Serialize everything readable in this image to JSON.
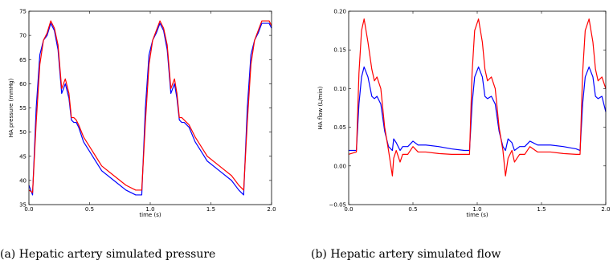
{
  "captions": {
    "a": "(a) Hepatic artery simulated pressure",
    "b": "(b) Hepatic artery simulated flow"
  },
  "colors": {
    "series1": "#0000ff",
    "series2": "#ff0000"
  },
  "chart_data": [
    {
      "type": "line",
      "xlabel": "time (s)",
      "ylabel": "HA pressure (mmHg)",
      "xlim": [
        0.0,
        2.0
      ],
      "ylim": [
        35,
        75
      ],
      "xticks": [
        0.0,
        0.5,
        1.0,
        1.5,
        2.0
      ],
      "xtick_labels": [
        "0.0",
        "0.5",
        "1.0",
        "1.5",
        "2.0"
      ],
      "yticks": [
        35,
        40,
        45,
        50,
        55,
        60,
        65,
        70,
        75
      ],
      "ytick_labels": [
        "35",
        "40",
        "45",
        "50",
        "55",
        "60",
        "65",
        "70",
        "75"
      ],
      "grid": false,
      "series": [
        {
          "color": "#0000ff",
          "x": [
            0.0,
            0.03,
            0.06,
            0.09,
            0.12,
            0.15,
            0.18,
            0.21,
            0.24,
            0.27,
            0.3,
            0.33,
            0.35,
            0.37,
            0.39,
            0.41,
            0.45,
            0.5,
            0.55,
            0.6,
            0.7,
            0.8,
            0.88,
            0.93,
            0.96,
            0.99,
            1.02,
            1.05,
            1.08,
            1.11,
            1.14,
            1.17,
            1.2,
            1.22,
            1.24,
            1.26,
            1.28,
            1.32,
            1.37,
            1.42,
            1.47,
            1.57,
            1.67,
            1.73,
            1.77,
            1.8,
            1.83,
            1.86,
            1.89,
            1.92,
            1.95,
            1.98,
            2.0
          ],
          "y": [
            39.0,
            37.0,
            55.0,
            66.0,
            69.0,
            70.0,
            72.5,
            71.0,
            67.0,
            58.0,
            60.0,
            57.0,
            52.5,
            52.0,
            52.0,
            51.0,
            48.0,
            46.0,
            44.0,
            42.0,
            40.0,
            38.0,
            37.0,
            37.0,
            55.0,
            66.0,
            69.0,
            70.5,
            72.5,
            71.0,
            67.0,
            58.0,
            60.0,
            57.0,
            52.5,
            52.0,
            52.0,
            51.0,
            48.0,
            46.0,
            44.0,
            42.0,
            40.0,
            38.0,
            37.0,
            55.0,
            66.0,
            69.0,
            70.5,
            72.5,
            72.5,
            72.5,
            71.5
          ]
        },
        {
          "color": "#ff0000",
          "x": [
            0.0,
            0.03,
            0.06,
            0.09,
            0.12,
            0.15,
            0.18,
            0.21,
            0.24,
            0.27,
            0.3,
            0.33,
            0.35,
            0.37,
            0.39,
            0.41,
            0.45,
            0.5,
            0.55,
            0.6,
            0.7,
            0.8,
            0.88,
            0.93,
            0.96,
            0.99,
            1.02,
            1.05,
            1.08,
            1.11,
            1.14,
            1.17,
            1.2,
            1.22,
            1.24,
            1.26,
            1.28,
            1.32,
            1.37,
            1.42,
            1.47,
            1.57,
            1.67,
            1.73,
            1.77,
            1.8,
            1.83,
            1.86,
            1.89,
            1.92,
            1.95,
            1.98,
            2.0
          ],
          "y": [
            38.0,
            37.5,
            52.0,
            64.0,
            69.0,
            70.5,
            73.0,
            71.5,
            68.0,
            59.0,
            61.0,
            58.0,
            53.0,
            53.0,
            52.5,
            51.5,
            49.0,
            47.0,
            45.0,
            43.0,
            41.0,
            39.0,
            38.0,
            38.0,
            52.0,
            64.0,
            69.0,
            71.0,
            73.0,
            71.5,
            68.0,
            59.0,
            61.0,
            58.0,
            53.0,
            53.0,
            52.5,
            51.5,
            49.0,
            47.0,
            45.0,
            43.0,
            41.0,
            39.0,
            38.0,
            52.0,
            64.0,
            69.0,
            71.0,
            73.0,
            73.0,
            73.0,
            72.0
          ]
        }
      ]
    },
    {
      "type": "line",
      "xlabel": "time (s)",
      "ylabel": "HA flow (L/min)",
      "xlim": [
        0.0,
        2.0
      ],
      "ylim": [
        -0.05,
        0.2
      ],
      "xticks": [
        0.0,
        0.5,
        1.0,
        1.5,
        2.0
      ],
      "xtick_labels": [
        "0.0",
        "0.5",
        "1.0",
        "1.5",
        "2.0"
      ],
      "yticks": [
        -0.05,
        0.0,
        0.05,
        0.1,
        0.15,
        0.2
      ],
      "ytick_labels": [
        "−0.05",
        "0.00",
        "0.05",
        "0.10",
        "0.15",
        "0.20"
      ],
      "grid": false,
      "series": [
        {
          "color": "#0000ff",
          "x": [
            0.0,
            0.06,
            0.08,
            0.1,
            0.12,
            0.15,
            0.18,
            0.2,
            0.22,
            0.25,
            0.28,
            0.31,
            0.34,
            0.35,
            0.37,
            0.4,
            0.42,
            0.46,
            0.5,
            0.54,
            0.6,
            0.7,
            0.8,
            0.9,
            0.94,
            0.96,
            0.98,
            1.01,
            1.04,
            1.06,
            1.08,
            1.11,
            1.14,
            1.17,
            1.2,
            1.22,
            1.24,
            1.27,
            1.29,
            1.33,
            1.37,
            1.41,
            1.47,
            1.57,
            1.67,
            1.77,
            1.8,
            1.82,
            1.84,
            1.87,
            1.9,
            1.92,
            1.94,
            1.97,
            2.0
          ],
          "y": [
            0.02,
            0.02,
            0.08,
            0.115,
            0.128,
            0.115,
            0.09,
            0.087,
            0.09,
            0.08,
            0.045,
            0.025,
            0.02,
            0.035,
            0.03,
            0.02,
            0.025,
            0.025,
            0.032,
            0.027,
            0.027,
            0.025,
            0.022,
            0.02,
            0.02,
            0.08,
            0.115,
            0.128,
            0.115,
            0.09,
            0.087,
            0.09,
            0.08,
            0.045,
            0.025,
            0.02,
            0.035,
            0.03,
            0.02,
            0.025,
            0.025,
            0.032,
            0.027,
            0.027,
            0.025,
            0.022,
            0.02,
            0.08,
            0.115,
            0.128,
            0.115,
            0.09,
            0.087,
            0.09,
            0.07
          ]
        },
        {
          "color": "#ff0000",
          "x": [
            0.0,
            0.06,
            0.08,
            0.1,
            0.12,
            0.15,
            0.18,
            0.2,
            0.22,
            0.25,
            0.28,
            0.31,
            0.34,
            0.35,
            0.37,
            0.4,
            0.42,
            0.46,
            0.5,
            0.54,
            0.6,
            0.7,
            0.8,
            0.9,
            0.94,
            0.96,
            0.98,
            1.01,
            1.04,
            1.06,
            1.08,
            1.11,
            1.14,
            1.17,
            1.2,
            1.22,
            1.24,
            1.27,
            1.29,
            1.33,
            1.37,
            1.41,
            1.47,
            1.57,
            1.67,
            1.77,
            1.8,
            1.82,
            1.84,
            1.87,
            1.9,
            1.92,
            1.94,
            1.97,
            2.0
          ],
          "y": [
            0.015,
            0.018,
            0.12,
            0.175,
            0.19,
            0.16,
            0.125,
            0.11,
            0.115,
            0.1,
            0.05,
            0.02,
            -0.013,
            0.01,
            0.02,
            0.005,
            0.015,
            0.015,
            0.025,
            0.018,
            0.018,
            0.016,
            0.015,
            0.015,
            0.015,
            0.12,
            0.175,
            0.19,
            0.16,
            0.125,
            0.11,
            0.115,
            0.1,
            0.05,
            0.02,
            -0.013,
            0.01,
            0.02,
            0.005,
            0.015,
            0.015,
            0.025,
            0.018,
            0.018,
            0.016,
            0.015,
            0.015,
            0.12,
            0.175,
            0.19,
            0.16,
            0.125,
            0.11,
            0.115,
            0.1
          ]
        }
      ]
    }
  ]
}
